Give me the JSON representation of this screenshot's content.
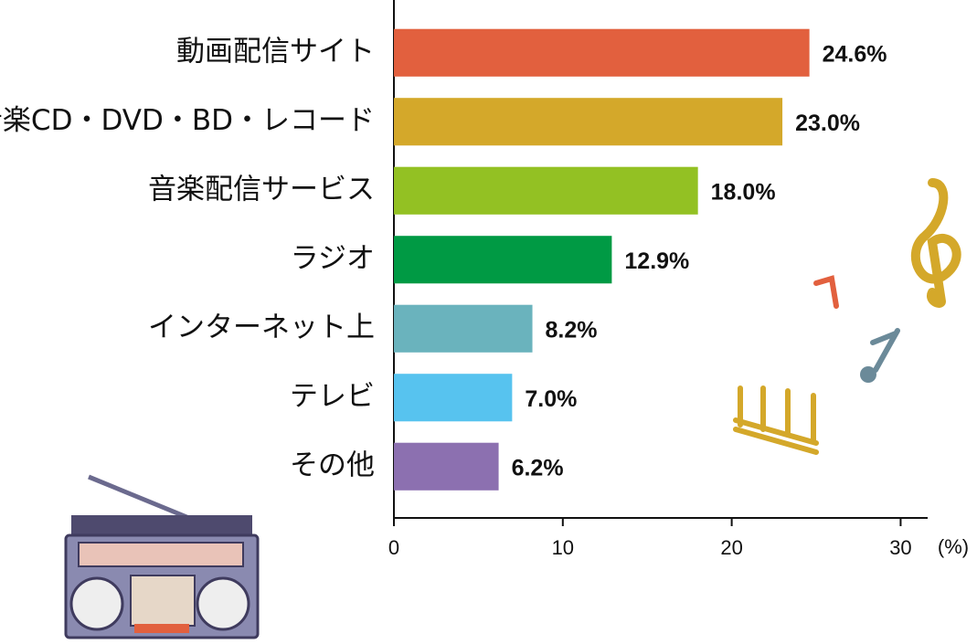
{
  "chart_data": {
    "type": "barh",
    "categories": [
      "動画配信サイト",
      "音楽CD・DVD・BD・レコード",
      "音楽配信サービス",
      "ラジオ",
      "インターネット上",
      "テレビ",
      "その他"
    ],
    "values": [
      24.6,
      23.0,
      18.0,
      12.9,
      8.2,
      7.0,
      6.2
    ],
    "value_labels": [
      "24.6%",
      "23.0%",
      "18.0%",
      "12.9%",
      "8.2%",
      "7.0%",
      "6.2%"
    ],
    "colors": [
      "#e2603e",
      "#d4a82a",
      "#93c123",
      "#009a44",
      "#6ab3bd",
      "#57c3ef",
      "#8c70b0"
    ],
    "xlim": [
      0,
      31.6
    ],
    "xticks": [
      0,
      10,
      20,
      30
    ],
    "xlabel": "(%)"
  }
}
